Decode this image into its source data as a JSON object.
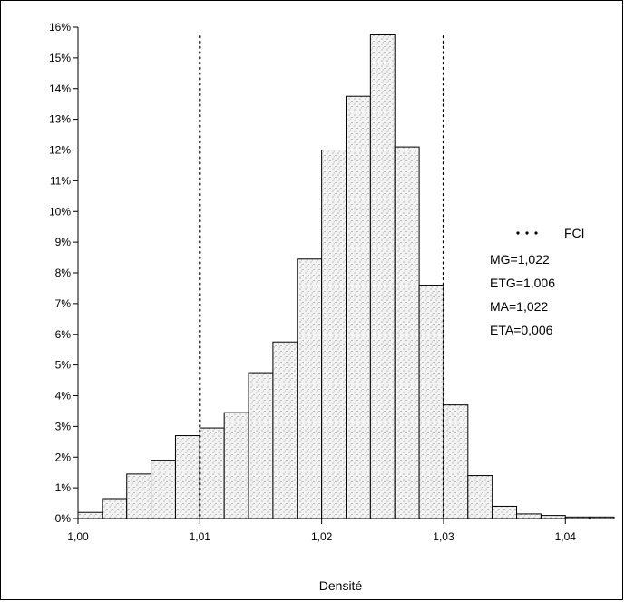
{
  "chart_data": {
    "type": "bar",
    "title": "",
    "xlabel": "Densité",
    "ylabel": "",
    "x_range": [
      1.0,
      1.044
    ],
    "ylim": [
      0,
      16
    ],
    "bin_width": 0.002,
    "bins": [
      {
        "start": 1.0,
        "value": 0.2
      },
      {
        "start": 1.002,
        "value": 0.65
      },
      {
        "start": 1.004,
        "value": 1.45
      },
      {
        "start": 1.006,
        "value": 1.9
      },
      {
        "start": 1.008,
        "value": 2.7
      },
      {
        "start": 1.01,
        "value": 2.95
      },
      {
        "start": 1.012,
        "value": 3.45
      },
      {
        "start": 1.014,
        "value": 4.75
      },
      {
        "start": 1.016,
        "value": 5.75
      },
      {
        "start": 1.018,
        "value": 8.45
      },
      {
        "start": 1.02,
        "value": 12.0
      },
      {
        "start": 1.022,
        "value": 13.75
      },
      {
        "start": 1.024,
        "value": 15.75
      },
      {
        "start": 1.026,
        "value": 12.1
      },
      {
        "start": 1.028,
        "value": 7.6
      },
      {
        "start": 1.03,
        "value": 3.7
      },
      {
        "start": 1.032,
        "value": 1.4
      },
      {
        "start": 1.034,
        "value": 0.4
      },
      {
        "start": 1.036,
        "value": 0.15
      },
      {
        "start": 1.038,
        "value": 0.1
      },
      {
        "start": 1.04,
        "value": 0.05
      },
      {
        "start": 1.042,
        "value": 0.05
      }
    ],
    "x_ticks": [
      {
        "value": 1.0,
        "label": "1,00"
      },
      {
        "value": 1.01,
        "label": "1,01"
      },
      {
        "value": 1.02,
        "label": "1,02"
      },
      {
        "value": 1.03,
        "label": "1,03"
      },
      {
        "value": 1.04,
        "label": "1,04"
      }
    ],
    "y_ticks": [
      {
        "value": 0,
        "label": "0%"
      },
      {
        "value": 1,
        "label": "1%"
      },
      {
        "value": 2,
        "label": "2%"
      },
      {
        "value": 3,
        "label": "3%"
      },
      {
        "value": 4,
        "label": "4%"
      },
      {
        "value": 5,
        "label": "5%"
      },
      {
        "value": 6,
        "label": "6%"
      },
      {
        "value": 7,
        "label": "7%"
      },
      {
        "value": 8,
        "label": "8%"
      },
      {
        "value": 9,
        "label": "9%"
      },
      {
        "value": 10,
        "label": "10%"
      },
      {
        "value": 11,
        "label": "11%"
      },
      {
        "value": 12,
        "label": "12%"
      },
      {
        "value": 13,
        "label": "13%"
      },
      {
        "value": 14,
        "label": "14%"
      },
      {
        "value": 15,
        "label": "15%"
      },
      {
        "value": 16,
        "label": "16%"
      }
    ],
    "reference_lines": [
      {
        "x": 1.01,
        "style": "dotted"
      },
      {
        "x": 1.03,
        "style": "dotted"
      }
    ],
    "legend": {
      "placement": "right",
      "marker_label": "FCI",
      "stats": [
        "MG=1,022",
        "ETG=1,006",
        "MA=1,022",
        "ETA=0,006"
      ]
    },
    "grid": false,
    "colors": {
      "bar_fill": "#f1f1f1",
      "bar_stroke": "#000000",
      "stipple": "#6f6f6f"
    }
  }
}
